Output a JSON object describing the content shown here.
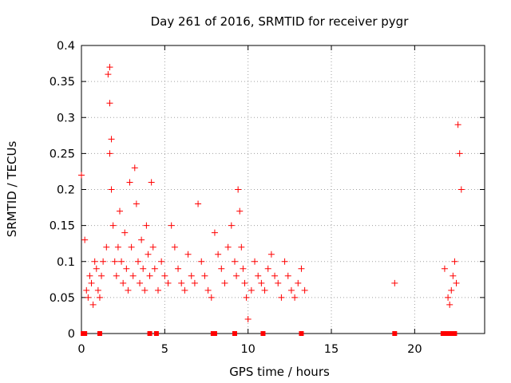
{
  "chart_data": {
    "type": "scatter",
    "title": "Day 261 of 2016, SRMTID for receiver pygr",
    "xlabel": "GPS time / hours",
    "ylabel": "SRMTID / TECUs",
    "xlim": [
      0,
      24.2
    ],
    "ylim": [
      0,
      0.4
    ],
    "xticks": [
      0,
      5,
      10,
      15,
      20
    ],
    "yticks": [
      0,
      0.05,
      0.1,
      0.15,
      0.2,
      0.25,
      0.3,
      0.35,
      0.4
    ],
    "xtick_labels": [
      "0",
      "5",
      "10",
      "15",
      "20"
    ],
    "ytick_labels": [
      "0",
      "0.05",
      "0.1",
      "0.15",
      "0.2",
      "0.25",
      "0.3",
      "0.35",
      "0.4"
    ],
    "grid": true,
    "marker": "+",
    "color": "#ff0000",
    "series": [
      {
        "name": "SRMTID",
        "x": [
          0.0,
          0.2,
          0.3,
          0.4,
          0.5,
          0.6,
          0.7,
          0.8,
          0.9,
          1.0,
          1.1,
          1.2,
          1.3,
          1.5,
          1.6,
          1.7,
          1.7,
          1.7,
          1.8,
          1.8,
          1.9,
          2.0,
          2.1,
          2.2,
          2.3,
          2.4,
          2.5,
          2.6,
          2.7,
          2.8,
          2.9,
          3.0,
          3.1,
          3.2,
          3.3,
          3.4,
          3.5,
          3.6,
          3.7,
          3.8,
          3.9,
          4.0,
          4.1,
          4.2,
          4.3,
          4.4,
          4.6,
          4.8,
          5.0,
          5.2,
          5.4,
          5.6,
          5.8,
          6.0,
          6.2,
          6.4,
          6.6,
          6.8,
          7.0,
          7.2,
          7.4,
          7.6,
          7.8,
          8.0,
          8.2,
          8.4,
          8.6,
          8.8,
          9.0,
          9.2,
          9.3,
          9.4,
          9.5,
          9.6,
          9.7,
          9.8,
          9.9,
          10.0,
          10.2,
          10.4,
          10.6,
          10.8,
          11.0,
          11.2,
          11.4,
          11.6,
          11.8,
          12.0,
          12.2,
          12.4,
          12.6,
          12.8,
          13.0,
          13.2,
          13.4,
          18.8,
          21.8,
          22.0,
          22.1,
          22.2,
          22.3,
          22.4,
          22.5,
          22.6,
          22.7,
          22.8
        ],
        "y": [
          0.22,
          0.13,
          0.06,
          0.05,
          0.08,
          0.07,
          0.04,
          0.1,
          0.09,
          0.06,
          0.05,
          0.08,
          0.1,
          0.12,
          0.36,
          0.32,
          0.25,
          0.37,
          0.27,
          0.2,
          0.15,
          0.1,
          0.08,
          0.12,
          0.17,
          0.1,
          0.07,
          0.14,
          0.09,
          0.06,
          0.21,
          0.12,
          0.08,
          0.23,
          0.18,
          0.1,
          0.07,
          0.13,
          0.09,
          0.06,
          0.15,
          0.11,
          0.08,
          0.21,
          0.12,
          0.09,
          0.06,
          0.1,
          0.08,
          0.07,
          0.15,
          0.12,
          0.09,
          0.07,
          0.06,
          0.11,
          0.08,
          0.07,
          0.18,
          0.1,
          0.08,
          0.06,
          0.05,
          0.14,
          0.11,
          0.09,
          0.07,
          0.12,
          0.15,
          0.1,
          0.08,
          0.2,
          0.17,
          0.12,
          0.09,
          0.07,
          0.05,
          0.02,
          0.06,
          0.1,
          0.08,
          0.07,
          0.06,
          0.09,
          0.11,
          0.08,
          0.07,
          0.05,
          0.1,
          0.08,
          0.06,
          0.05,
          0.07,
          0.09,
          0.06,
          0.07,
          0.09,
          0.05,
          0.04,
          0.06,
          0.08,
          0.1,
          0.07,
          0.29,
          0.25,
          0.2
        ]
      }
    ],
    "zero_markers_x": [
      0.1,
      0.2,
      1.1,
      4.1,
      4.5,
      7.9,
      8.0,
      9.2,
      10.9,
      13.2,
      18.8,
      21.7,
      21.8,
      21.9,
      22.1,
      22.2,
      22.4
    ]
  }
}
